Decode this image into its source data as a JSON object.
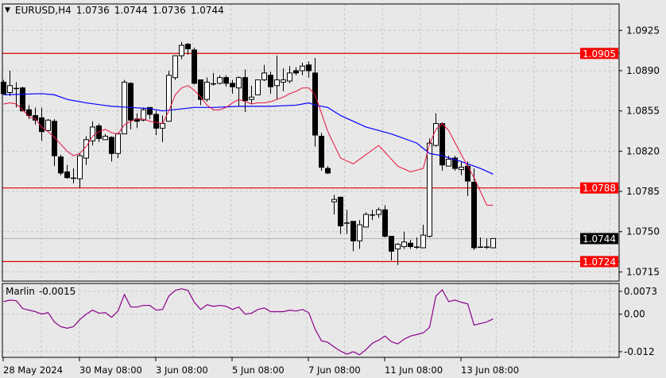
{
  "header": {
    "symbol": "EURUSD,H4",
    "open": "1.0736",
    "high": "1.0744",
    "low": "1.0736",
    "close": "1.0744",
    "menu_icon": "triangle-down-icon"
  },
  "colors": {
    "background": "#e8e8e8",
    "grid": "#c4c4c4",
    "candle_bull": "#ffffff",
    "candle_bear": "#000000",
    "ma_slow": "#0000ff",
    "ma_fast": "#e8103c",
    "level_line": "#e00000",
    "level_label_bg": "#ff0000",
    "price_label_bg": "#000000",
    "oscillator": "#8b008b"
  },
  "price_axis": {
    "range": [
      1.0707,
      1.0948
    ],
    "ticks": [
      "1.0925",
      "1.0890",
      "1.0855",
      "1.0820",
      "1.0785",
      "1.0750",
      "1.0715"
    ],
    "levels": [
      "1.0905",
      "1.0788",
      "1.0724"
    ],
    "current_price": "1.0744"
  },
  "oscillator": {
    "name": "Marlin",
    "value": "-0.0015",
    "range": [
      -0.0138,
      0.0098
    ],
    "ticks": [
      "0.0073",
      "0.00",
      "-0.012"
    ]
  },
  "time_axis": [
    {
      "label": "28 May 2024",
      "bar": 0
    },
    {
      "label": "30 May 08:00",
      "bar": 12
    },
    {
      "label": "3 Jun 08:00",
      "bar": 24
    },
    {
      "label": "5 Jun 08:00",
      "bar": 36
    },
    {
      "label": "7 Jun 08:00",
      "bar": 48
    },
    {
      "label": "11 Jun 08:00",
      "bar": 60
    },
    {
      "label": "13 Jun 08:00",
      "bar": 72
    }
  ],
  "chart_data": {
    "type": "candlestick",
    "ohlc": [
      [
        1.088,
        1.0882,
        1.0869,
        1.087
      ],
      [
        1.0871,
        1.089,
        1.0868,
        1.0877
      ],
      [
        1.0875,
        1.088,
        1.0858,
        1.0874
      ],
      [
        1.0875,
        1.0876,
        1.0855,
        1.0855
      ],
      [
        1.0856,
        1.086,
        1.0848,
        1.0851
      ],
      [
        1.0851,
        1.0858,
        1.0843,
        1.0847
      ],
      [
        1.0849,
        1.0858,
        1.0829,
        1.0837
      ],
      [
        1.0838,
        1.0848,
        1.0837,
        1.0847
      ],
      [
        1.0846,
        1.0848,
        1.0807,
        1.0816
      ],
      [
        1.0815,
        1.0817,
        1.0799,
        1.0801
      ],
      [
        1.0802,
        1.0808,
        1.0796,
        1.0797
      ],
      [
        1.0796,
        1.0805,
        1.0792,
        1.0797
      ],
      [
        1.0796,
        1.0818,
        1.0788,
        1.0816
      ],
      [
        1.0814,
        1.0833,
        1.0808,
        1.083
      ],
      [
        1.0829,
        1.0846,
        1.0825,
        1.0841
      ],
      [
        1.0842,
        1.0844,
        1.0828,
        1.0831
      ],
      [
        1.083,
        1.0835,
        1.083,
        1.0833
      ],
      [
        1.0832,
        1.0833,
        1.0811,
        1.0818
      ],
      [
        1.0818,
        1.0836,
        1.0814,
        1.0835
      ],
      [
        1.0835,
        1.0882,
        1.0835,
        1.088
      ],
      [
        1.0879,
        1.088,
        1.0839,
        1.0847
      ],
      [
        1.0848,
        1.0853,
        1.084,
        1.0846
      ],
      [
        1.0847,
        1.0858,
        1.0846,
        1.0856
      ],
      [
        1.0858,
        1.0858,
        1.0848,
        1.0852
      ],
      [
        1.0852,
        1.0855,
        1.0834,
        1.084
      ],
      [
        1.084,
        1.0851,
        1.0828,
        1.0844
      ],
      [
        1.0846,
        1.089,
        1.0846,
        1.0886
      ],
      [
        1.0884,
        1.0903,
        1.0882,
        1.0903
      ],
      [
        1.0903,
        1.0915,
        1.09,
        1.0912
      ],
      [
        1.0913,
        1.0914,
        1.0904,
        1.0909
      ],
      [
        1.0908,
        1.091,
        1.0878,
        1.0879
      ],
      [
        1.0882,
        1.0882,
        1.086,
        1.0865
      ],
      [
        1.0865,
        1.0884,
        1.0863,
        1.088
      ],
      [
        1.0879,
        1.0888,
        1.0877,
        1.0878
      ],
      [
        1.0879,
        1.0886,
        1.0878,
        1.0884
      ],
      [
        1.0884,
        1.0886,
        1.0876,
        1.0879
      ],
      [
        1.0879,
        1.0882,
        1.087,
        1.0876
      ],
      [
        1.0875,
        1.0885,
        1.0859,
        1.0884
      ],
      [
        1.0884,
        1.0891,
        1.0854,
        1.0864
      ],
      [
        1.0865,
        1.0877,
        1.0861,
        1.0867
      ],
      [
        1.0869,
        1.0882,
        1.0869,
        1.0882
      ],
      [
        1.0882,
        1.0895,
        1.0881,
        1.0888
      ],
      [
        1.0886,
        1.0889,
        1.087,
        1.0876
      ],
      [
        1.0877,
        1.0903,
        1.0865,
        1.0882
      ],
      [
        1.088,
        1.0892,
        1.0872,
        1.0882
      ],
      [
        1.0881,
        1.0894,
        1.0879,
        1.0888
      ],
      [
        1.089,
        1.0893,
        1.0886,
        1.0888
      ],
      [
        1.089,
        1.0897,
        1.0886,
        1.0894
      ],
      [
        1.0895,
        1.0898,
        1.0884,
        1.089
      ],
      [
        1.0888,
        1.0901,
        1.0824,
        1.0834
      ],
      [
        1.0833,
        1.0836,
        1.0803,
        1.0806
      ],
      [
        1.0805,
        1.0807,
        1.08,
        1.0801
      ],
      [
        1.0776,
        1.0782,
        1.0765,
        1.0778
      ],
      [
        1.078,
        1.078,
        1.0748,
        1.0755
      ],
      [
        1.0757,
        1.0769,
        1.0748,
        1.0758
      ],
      [
        1.0759,
        1.0759,
        1.0733,
        1.0742
      ],
      [
        1.0742,
        1.076,
        1.0735,
        1.0756
      ],
      [
        1.0754,
        1.0767,
        1.0754,
        1.0765
      ],
      [
        1.0765,
        1.0769,
        1.076,
        1.0764
      ],
      [
        1.0765,
        1.0771,
        1.0762,
        1.0769
      ],
      [
        1.0769,
        1.0773,
        1.0745,
        1.0746
      ],
      [
        1.0746,
        1.0746,
        1.0725,
        1.0733
      ],
      [
        1.0735,
        1.074,
        1.0721,
        1.0739
      ],
      [
        1.0737,
        1.075,
        1.0735,
        1.0741
      ],
      [
        1.074,
        1.0743,
        1.0735,
        1.0737
      ],
      [
        1.0737,
        1.0745,
        1.0735,
        1.0736
      ],
      [
        1.0736,
        1.0756,
        1.0736,
        1.0747
      ],
      [
        1.0746,
        1.0831,
        1.0745,
        1.0827
      ],
      [
        1.0825,
        1.0853,
        1.0824,
        1.0844
      ],
      [
        1.0844,
        1.0845,
        1.0803,
        1.0808
      ],
      [
        1.0807,
        1.0816,
        1.0807,
        1.0813
      ],
      [
        1.0814,
        1.0816,
        1.0803,
        1.0805
      ],
      [
        1.0804,
        1.0811,
        1.0799,
        1.0806
      ],
      [
        1.0807,
        1.0811,
        1.0781,
        1.0794
      ],
      [
        1.0793,
        1.0805,
        1.0734,
        1.0736
      ],
      [
        1.0737,
        1.0745,
        1.0736,
        1.0736
      ],
      [
        1.0737,
        1.0744,
        1.0735,
        1.0736
      ],
      [
        1.0736,
        1.0744,
        1.0736,
        1.0744
      ]
    ],
    "ma_slow": [
      [
        0,
        1.0869
      ],
      [
        6,
        1.087
      ],
      [
        8,
        1.0869
      ],
      [
        10,
        1.0865
      ],
      [
        13,
        1.0862
      ],
      [
        17,
        1.0859
      ],
      [
        20,
        1.0858
      ],
      [
        23,
        1.0857
      ],
      [
        25,
        1.0855
      ],
      [
        30,
        1.0858
      ],
      [
        33,
        1.0858
      ],
      [
        37,
        1.0859
      ],
      [
        42,
        1.0859
      ],
      [
        46,
        1.086
      ],
      [
        48,
        1.0862
      ],
      [
        49,
        1.086
      ],
      [
        51,
        1.0858
      ],
      [
        53,
        1.0851
      ],
      [
        57,
        1.0841
      ],
      [
        61,
        1.0835
      ],
      [
        65,
        1.0827
      ],
      [
        67,
        1.0818
      ],
      [
        69,
        1.0816
      ],
      [
        72,
        1.0811
      ],
      [
        75,
        1.0805
      ],
      [
        77,
        1.08
      ]
    ],
    "ma_fast": [
      [
        0,
        1.0861
      ],
      [
        1,
        1.0862
      ],
      [
        2,
        1.0861
      ],
      [
        3,
        1.0856
      ],
      [
        4,
        1.085
      ],
      [
        5,
        1.0848
      ],
      [
        6,
        1.0841
      ],
      [
        7,
        1.0837
      ],
      [
        8,
        1.0832
      ],
      [
        9,
        1.0826
      ],
      [
        10,
        1.082
      ],
      [
        11,
        1.0816
      ],
      [
        12,
        1.0818
      ],
      [
        13,
        1.0824
      ],
      [
        14,
        1.0833
      ],
      [
        15,
        1.0837
      ],
      [
        16,
        1.0839
      ],
      [
        17,
        1.0836
      ],
      [
        18,
        1.0835
      ],
      [
        19,
        1.0843
      ],
      [
        20,
        1.0846
      ],
      [
        21,
        1.0848
      ],
      [
        22,
        1.0848
      ],
      [
        23,
        1.0846
      ],
      [
        24,
        1.0845
      ],
      [
        25,
        1.0844
      ],
      [
        26,
        1.0855
      ],
      [
        27,
        1.0869
      ],
      [
        28,
        1.0875
      ],
      [
        29,
        1.0877
      ],
      [
        30,
        1.0873
      ],
      [
        31,
        1.0867
      ],
      [
        32,
        1.086
      ],
      [
        33,
        1.0856
      ],
      [
        34,
        1.0856
      ],
      [
        35,
        1.0858
      ],
      [
        36,
        1.0862
      ],
      [
        37,
        1.0865
      ],
      [
        38,
        1.0863
      ],
      [
        39,
        1.0861
      ],
      [
        40,
        1.0862
      ],
      [
        41,
        1.0862
      ],
      [
        42,
        1.0863
      ],
      [
        43,
        1.0865
      ],
      [
        44,
        1.0867
      ],
      [
        45,
        1.087
      ],
      [
        46,
        1.0872
      ],
      [
        47,
        1.0875
      ],
      [
        48,
        1.0875
      ],
      [
        49,
        1.0869
      ],
      [
        50,
        1.0853
      ],
      [
        51,
        1.0837
      ],
      [
        53,
        1.0814
      ],
      [
        55,
        1.0809
      ],
      [
        59,
        1.0825
      ],
      [
        62,
        1.0807
      ],
      [
        64,
        1.0802
      ],
      [
        66,
        1.0805
      ],
      [
        67,
        1.0826
      ],
      [
        68,
        1.0839
      ],
      [
        69,
        1.0844
      ],
      [
        70,
        1.0838
      ],
      [
        72,
        1.0817
      ],
      [
        74,
        1.0797
      ],
      [
        76,
        1.0773
      ],
      [
        77,
        1.0773
      ]
    ],
    "marlin": [
      0.004,
      0.0045,
      0.0043,
      0.0018,
      0.0013,
      0.0008,
      0.0,
      0.0005,
      -0.0025,
      -0.004,
      -0.0045,
      -0.004,
      -0.0017,
      0.0,
      0.0013,
      0.0003,
      0.0005,
      -0.001,
      0.001,
      0.0063,
      0.0023,
      0.0023,
      0.0028,
      0.0028,
      0.0013,
      0.0015,
      0.0058,
      0.0076,
      0.0081,
      0.0076,
      0.0038,
      0.0015,
      0.003,
      0.0025,
      0.0028,
      0.0025,
      0.0015,
      0.0023,
      0.0,
      0.0003,
      0.0015,
      0.002,
      0.0008,
      0.0008,
      0.0008,
      0.0013,
      0.001,
      0.0015,
      0.0005,
      -0.0048,
      -0.0085,
      -0.009,
      -0.0105,
      -0.0118,
      -0.0128,
      -0.012,
      -0.013,
      -0.0113,
      -0.0093,
      -0.0083,
      -0.007,
      -0.0088,
      -0.0095,
      -0.008,
      -0.007,
      -0.0065,
      -0.006,
      -0.0042,
      0.0058,
      0.0078,
      0.004,
      0.0045,
      0.0038,
      0.0033,
      -0.0035,
      -0.003,
      -0.0025,
      -0.0015
    ]
  }
}
